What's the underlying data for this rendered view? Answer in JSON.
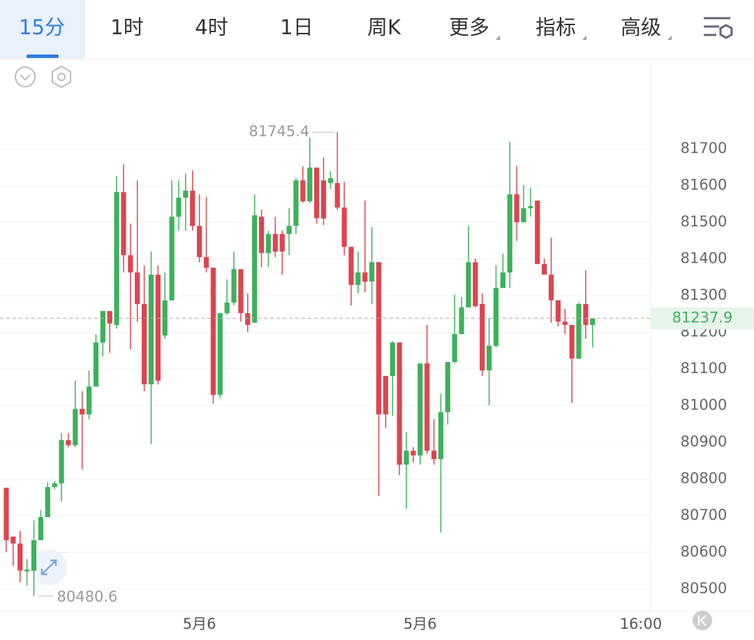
{
  "tabs": [
    "15分",
    "1时",
    "4时",
    "1日",
    "周K",
    "更多",
    "指标",
    "高级"
  ],
  "chart_data": {
    "type": "candlestick",
    "categories": [
      null,
      null,
      null,
      null,
      null,
      null,
      null,
      null,
      null,
      null,
      null,
      null,
      null,
      null,
      null,
      null,
      null,
      null,
      null,
      null,
      null,
      null,
      null,
      null,
      null,
      null,
      null,
      null,
      "5月6",
      null,
      null,
      null,
      null,
      null,
      null,
      null,
      null,
      null,
      null,
      null,
      null,
      null,
      null,
      null,
      null,
      null,
      null,
      null,
      null,
      null,
      null,
      null,
      null,
      null,
      null,
      null,
      null,
      null,
      null,
      null,
      "5月6",
      null,
      null,
      null,
      null,
      null,
      null,
      null,
      null,
      null,
      null,
      null,
      null,
      null,
      null,
      null,
      null,
      null,
      null,
      null,
      null,
      null,
      null,
      null,
      null,
      null,
      null,
      null,
      null,
      null,
      null,
      null,
      "16:00"
    ],
    "open": [
      80776,
      80643,
      80624,
      80548,
      80550,
      80633,
      80696,
      80778,
      80788,
      80906,
      80892,
      80991,
      80976,
      81052,
      81172,
      81258,
      81220,
      81582,
      81410,
      81363,
      81277,
      81058,
      81357,
      81191,
      81287,
      81515,
      81567,
      81586,
      81490,
      81405,
      81376,
      81029,
      81252,
      81281,
      81372,
      81252,
      81226,
      81515,
      81416,
      81468,
      81468,
      81468,
      81490,
      81614,
      81557,
      81649,
      81614,
      81607,
      81607,
      81540,
      81433,
      81329,
      81363,
      81338,
      81391,
      81081,
      81081,
      81172,
      80839,
      80877,
      80864,
      81115,
      80877,
      80854,
      80982,
      81119,
      81195,
      81268,
      81391,
      81277,
      81096,
      81163,
      81321,
      81363,
      81576,
      81500,
      81538,
      81559,
      81386,
      81357,
      81287,
      81229,
      81220,
      81128,
      81277,
      81220,
      null,
      null,
      null,
      null,
      null,
      null,
      null
    ],
    "high": [
      80776,
      80643,
      80658,
      80582,
      80687,
      80715,
      80791,
      80795,
      80925,
      80925,
      81068,
      81039,
      81096,
      81195,
      81258,
      81258,
      81626,
      81658,
      81496,
      81614,
      81382,
      81420,
      81382,
      81363,
      81614,
      81614,
      81633,
      81641,
      81576,
      81569,
      81376,
      81252,
      81344,
      81420,
      81372,
      81306,
      81576,
      81534,
      81477,
      81515,
      81477,
      81538,
      81620,
      81652,
      81730,
      81649,
      81677,
      81639,
      81745.4,
      81610,
      81433,
      81420,
      81559,
      81487,
      81391,
      81081,
      81176,
      81172,
      80928,
      80887,
      81115,
      81220,
      80963,
      81033,
      81119,
      81302,
      81296,
      81490,
      81401,
      81306,
      81239,
      81382,
      81414,
      81719,
      81654,
      81601,
      81595,
      81559,
      81401,
      81458,
      81287,
      81264,
      81220,
      81281,
      81369,
      81237.9,
      null,
      null,
      null,
      null,
      null,
      null,
      null
    ],
    "low": [
      80601,
      80563,
      80519,
      80509,
      80480.6,
      80633,
      80696,
      80772,
      80738,
      80887,
      80887,
      80826,
      80963,
      81052,
      81134,
      81144,
      81210,
      81363,
      81153,
      81229,
      81039,
      80895,
      81058,
      81182,
      81287,
      81477,
      81477,
      81477,
      81391,
      81363,
      81005,
      81020,
      81248,
      81273,
      81229,
      81201,
      81226,
      81378,
      81378,
      81405,
      81357,
      81410,
      81468,
      81553,
      81553,
      81496,
      81492,
      81591,
      81534,
      81410,
      81273,
      81306,
      81309,
      81277,
      80753,
      80940,
      80972,
      80810,
      80719,
      80845,
      80839,
      80868,
      80839,
      80654,
      80948,
      81115,
      81195,
      81268,
      81268,
      81081,
      81001,
      81159,
      81321,
      81321,
      81449,
      81500,
      81515,
      81386,
      81357,
      81226,
      81216,
      81195,
      81007,
      81128,
      81182,
      81159,
      null,
      null,
      null,
      null,
      null,
      null,
      null
    ],
    "close": [
      80633,
      80624,
      80550,
      80553,
      80633,
      80696,
      80778,
      80788,
      80906,
      80892,
      80991,
      80976,
      81052,
      81172,
      81258,
      81224,
      81582,
      81410,
      81363,
      81277,
      81058,
      81357,
      81068,
      81287,
      81515,
      81567,
      81586,
      81490,
      81405,
      81376,
      81029,
      81252,
      81281,
      81372,
      81252,
      81220,
      81519,
      81416,
      81468,
      81420,
      81420,
      81490,
      81614,
      81557,
      81649,
      81511,
      81510,
      81620,
      81540,
      81433,
      81329,
      81363,
      81338,
      81391,
      80976,
      80976,
      81172,
      80839,
      80877,
      80864,
      81115,
      80877,
      80854,
      80982,
      81119,
      81195,
      81268,
      81391,
      81271,
      81096,
      81163,
      81321,
      81363,
      81576,
      81500,
      81538,
      81544,
      81386,
      81357,
      81287,
      81229,
      81220,
      81128,
      81277,
      81220,
      81237.9,
      null,
      null,
      null,
      null,
      null,
      null,
      null
    ],
    "up_color": "#3bb25a",
    "down_color": "#de4450",
    "ylim": [
      80439,
      81944
    ],
    "yticks": [
      80500,
      80600,
      80700,
      80800,
      80900,
      81000,
      81100,
      81200,
      81300,
      81400,
      81500,
      81600,
      81700
    ],
    "grid": true
  }
}
